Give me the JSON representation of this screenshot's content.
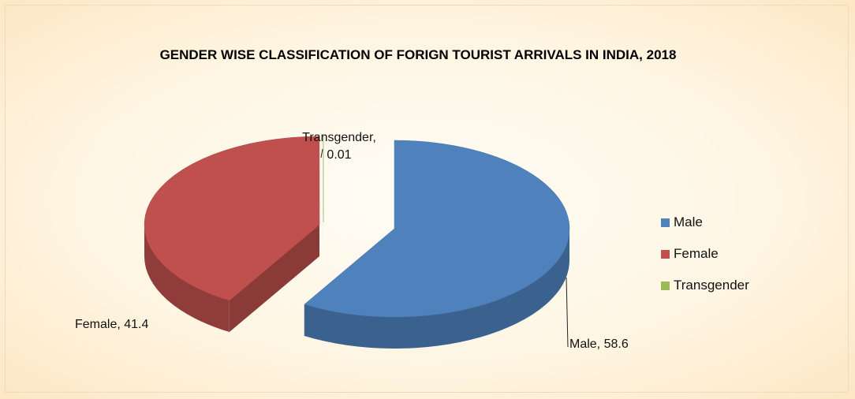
{
  "chart_data": {
    "type": "pie",
    "title": "GENDER WISE CLASSIFICATION OF FORIGN TOURIST ARRIVALS IN INDIA, 2018",
    "categories": [
      "Male",
      "Female",
      "Transgender"
    ],
    "values": [
      58.6,
      41.4,
      0.01
    ],
    "value_labels": [
      "Male, 58.6",
      "Female, 41.4",
      "Transgender, 0.01"
    ],
    "colors": [
      "#4f81bd",
      "#c0504d",
      "#9bbb59"
    ],
    "legend": "right"
  }
}
